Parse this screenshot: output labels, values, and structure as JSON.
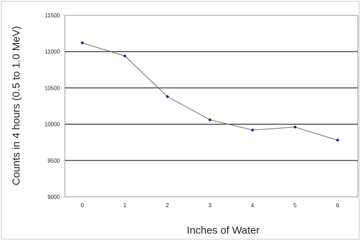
{
  "chart_data": {
    "type": "line",
    "title": "",
    "xlabel": "Inches of Water",
    "ylabel": "Counts in 4 hours (0.5 to 1.0 MeV)",
    "x": [
      0,
      1,
      2,
      3,
      4,
      5,
      6
    ],
    "series": [
      {
        "values": [
          11120,
          10940,
          10380,
          10060,
          9920,
          9960,
          9780
        ]
      }
    ],
    "x_ticks": [
      "0",
      "1",
      "2",
      "3",
      "4",
      "5",
      "6"
    ],
    "y_ticks": [
      "9000",
      "9500",
      "10000",
      "10500",
      "11000",
      "11500"
    ],
    "ylim": [
      9000,
      11500
    ],
    "grid": "horizontal",
    "legend": "none",
    "colors": {
      "plot_background": "#ffffff",
      "gridline": "#000000",
      "series_line": "#6b6b6b",
      "series_marker": "#1a1a6e",
      "frame": "#9a9a9a"
    }
  }
}
